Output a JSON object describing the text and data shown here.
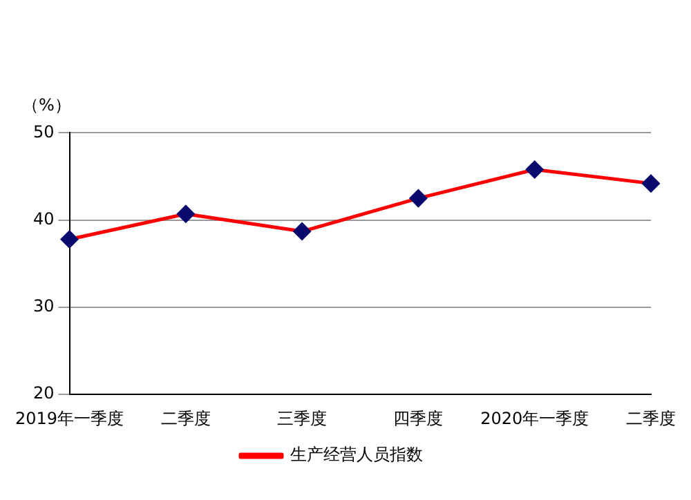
{
  "chart_data": {
    "type": "line",
    "ylabel": "（%）",
    "categories": [
      "2019年一季度",
      "二季度",
      "三季度",
      "四季度",
      "2020年一季度",
      "二季度"
    ],
    "series": [
      {
        "name": "生产经营人员指数",
        "color": "#ff0000",
        "values": [
          37.8,
          40.7,
          38.7,
          42.5,
          45.8,
          44.2
        ]
      }
    ],
    "ylim": [
      20,
      50
    ],
    "yticks": [
      20,
      30,
      40,
      50
    ],
    "grid": "y",
    "legend": "bottom",
    "marker": "diamond",
    "line_style": "solid"
  }
}
